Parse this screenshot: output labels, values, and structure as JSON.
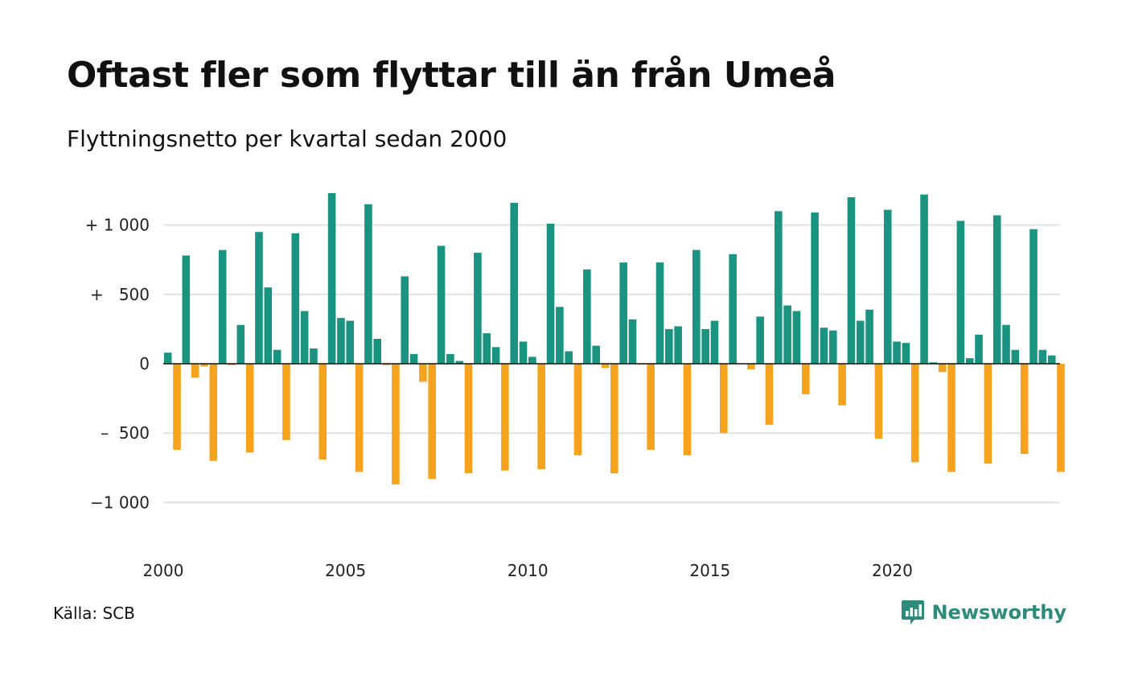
{
  "title": "Oftast fler som flyttar till än från Umeå",
  "subtitle": "Flyttningsnetto per kvartal sedan 2000",
  "source": "Källa: SCB",
  "brand": "Newsworthy",
  "colors": {
    "positive": "#1a9480",
    "negative": "#f5a31c",
    "grid": "#e2e2e2",
    "axis": "#111111",
    "brand": "#2e8b7a"
  },
  "chart_data": {
    "type": "bar",
    "title": "Oftast fler som flyttar till än från Umeå",
    "subtitle": "Flyttningsnetto per kvartal sedan 2000",
    "x_unit": "quarter",
    "start": "2000 Q1",
    "ylim": [
      -1150,
      1250
    ],
    "yticks": [
      {
        "value": 1000,
        "label": "+ 1 000"
      },
      {
        "value": 500,
        "label": "+   500"
      },
      {
        "value": 0,
        "label": "0"
      },
      {
        "value": -500,
        "label": "–  500"
      },
      {
        "value": -1000,
        "label": "−1 000"
      }
    ],
    "xticks": [
      {
        "value": "2000",
        "label": "2000"
      },
      {
        "value": "2005",
        "label": "2005"
      },
      {
        "value": "2010",
        "label": "2010"
      },
      {
        "value": "2015",
        "label": "2015"
      },
      {
        "value": "2020",
        "label": "2020"
      }
    ],
    "grid": true,
    "legend": "none",
    "series": [
      {
        "values": [
          80,
          -620,
          780,
          -100,
          -20,
          -700,
          820,
          -10,
          280,
          -640,
          950,
          550,
          100,
          -550,
          940,
          380,
          110,
          -690,
          1230,
          330,
          310,
          -780,
          1150,
          180,
          -10,
          -870,
          630,
          70,
          -130,
          -830,
          850,
          70,
          20,
          -790,
          800,
          220,
          120,
          -770,
          1160,
          160,
          50,
          -760,
          1010,
          410,
          90,
          -660,
          680,
          130,
          -30,
          -790,
          730,
          320,
          -5,
          -620,
          730,
          250,
          270,
          -660,
          820,
          250,
          310,
          -500,
          790,
          0,
          -40,
          340,
          -440,
          1100,
          420,
          380,
          -220,
          1090,
          260,
          240,
          -300,
          1200,
          310,
          390,
          -540,
          1110,
          160,
          150,
          -710,
          1220,
          10,
          -60,
          -780,
          1030,
          40,
          210,
          -720,
          1070,
          280,
          100,
          -650,
          970,
          100,
          60,
          -780
        ]
      }
    ]
  }
}
